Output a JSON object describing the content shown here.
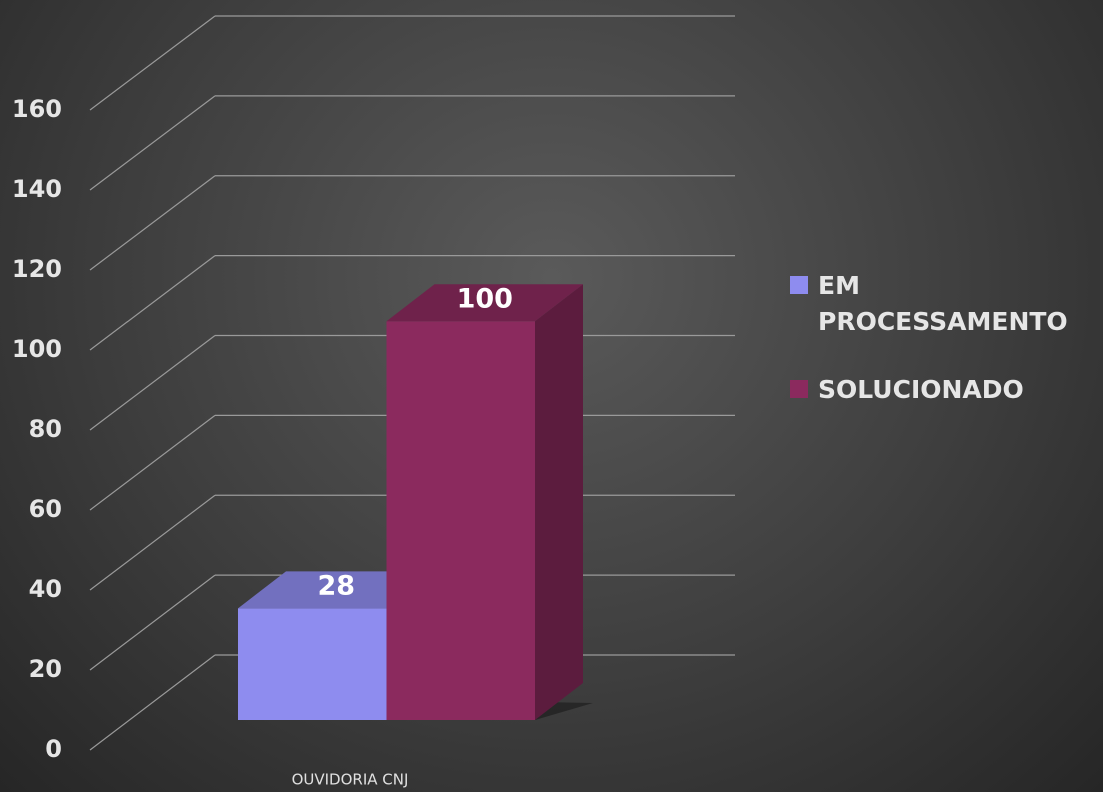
{
  "chart_data": {
    "type": "bar3d",
    "categories": [
      "OUVIDORIA CNJ"
    ],
    "series": [
      {
        "name": "EM PROCESSAMENTO",
        "color": "#8e8cef",
        "values": [
          28
        ]
      },
      {
        "name": "SOLUCIONADO",
        "color": "#8b2a5e",
        "values": [
          100
        ]
      }
    ],
    "ylim": [
      0,
      160
    ],
    "yticks": [
      0,
      20,
      40,
      60,
      80,
      100,
      120,
      140,
      160
    ],
    "grid": true,
    "legend": "right"
  }
}
